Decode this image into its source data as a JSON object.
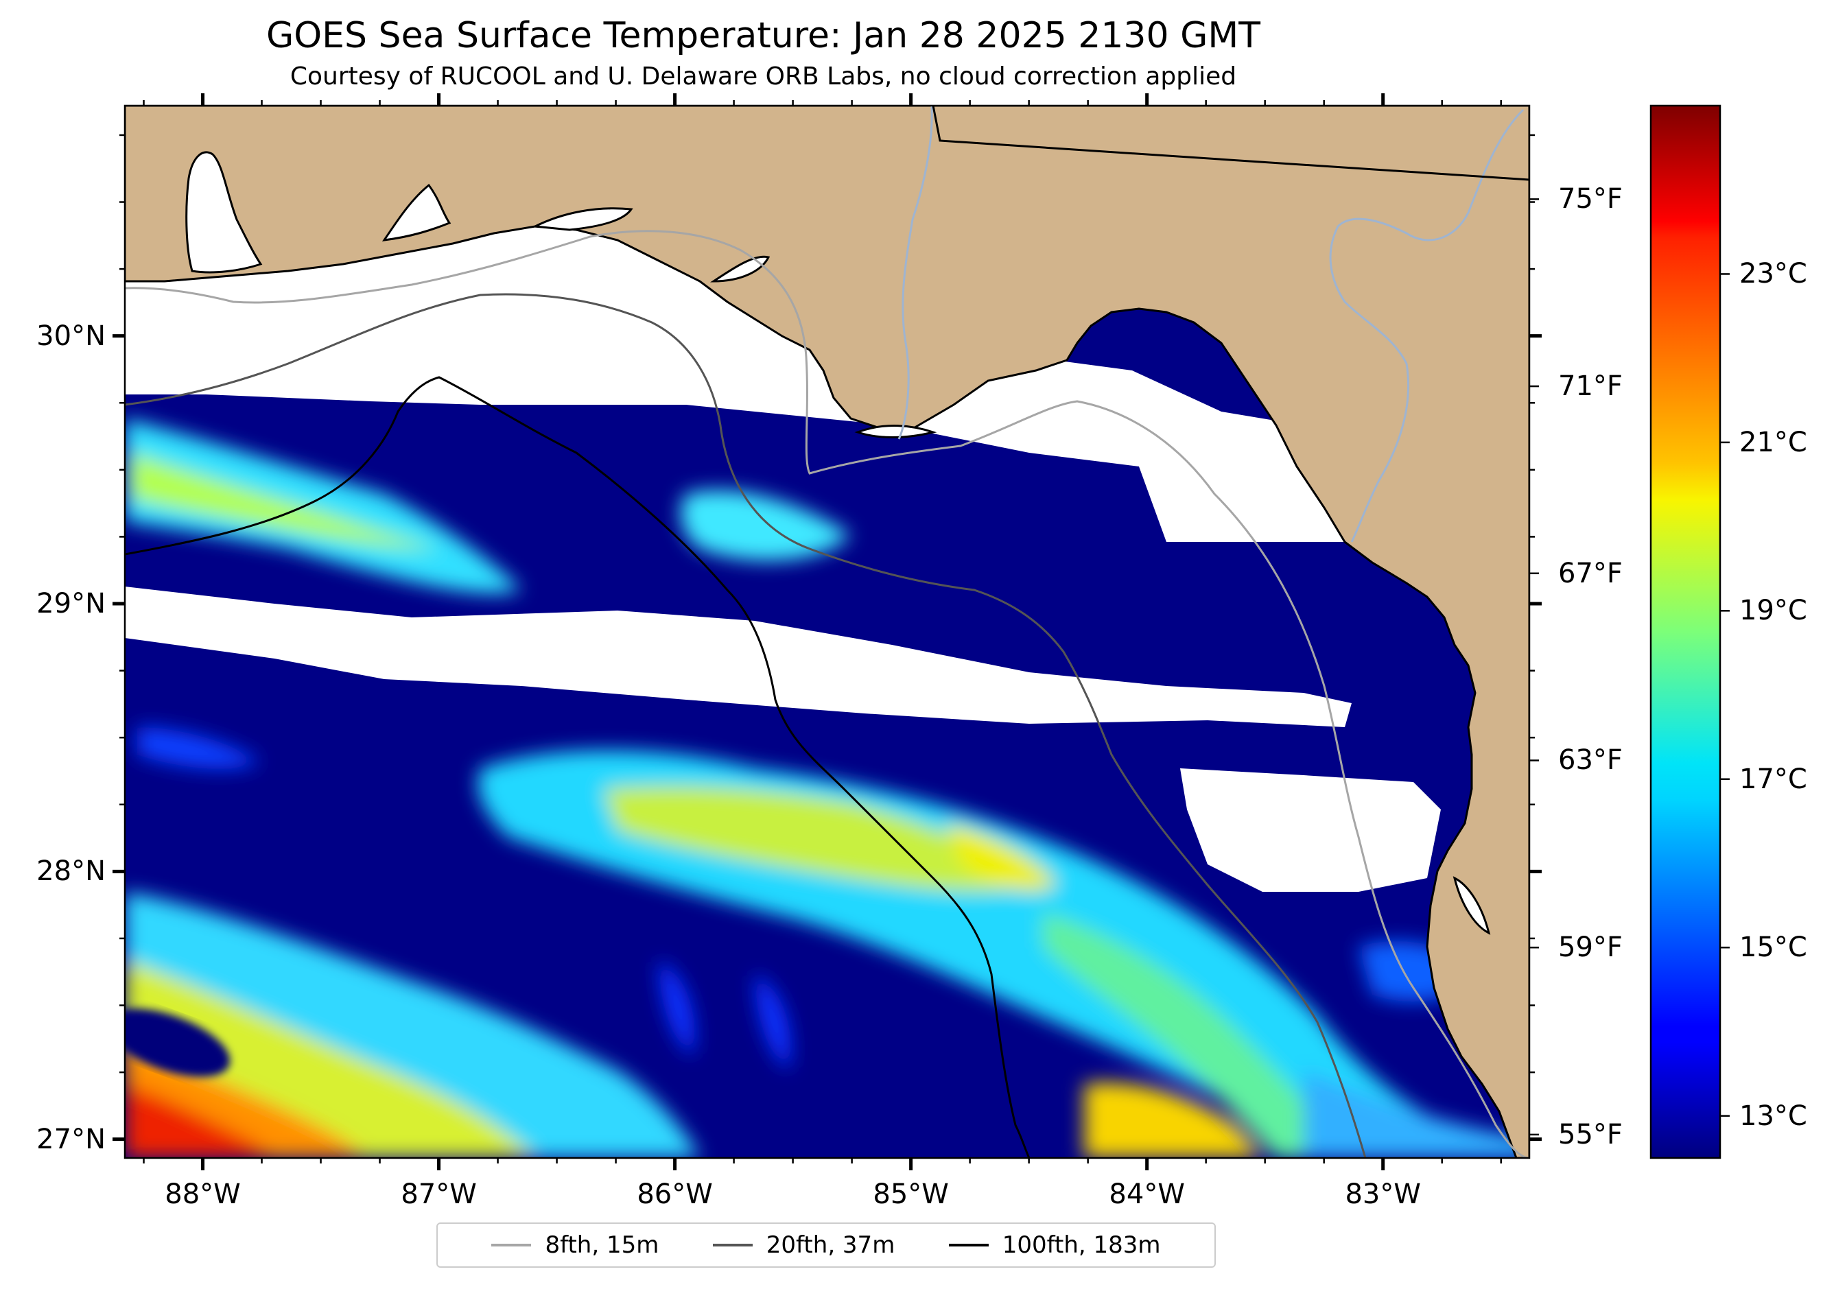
{
  "title": "GOES Sea Surface Temperature: Jan 28 2025 2130 GMT",
  "subtitle": "Courtesy of RUCOOL and U. Delaware ORB Labs, no cloud correction applied",
  "map": {
    "extent": {
      "lon_min": -88.33,
      "lon_max": -82.38,
      "lat_min": 26.93,
      "lat_max": 30.86
    },
    "colors": {
      "land": "#d2b48c",
      "cloud_mask": "#ffffff",
      "coast": "#000000",
      "rivers": "#9fb4d0"
    },
    "lat_ticks": [
      {
        "value": 30,
        "label": "30°N"
      },
      {
        "value": 29,
        "label": "29°N"
      },
      {
        "value": 28,
        "label": "28°N"
      },
      {
        "value": 27,
        "label": "27°N"
      }
    ],
    "lon_ticks": [
      {
        "value": -88,
        "label": "88°W"
      },
      {
        "value": -87,
        "label": "87°W"
      },
      {
        "value": -86,
        "label": "86°W"
      },
      {
        "value": -85,
        "label": "85°W"
      },
      {
        "value": -84,
        "label": "84°W"
      },
      {
        "value": -83,
        "label": "83°W"
      }
    ]
  },
  "colorbar": {
    "colormap": "jet",
    "range_c": [
      12.5,
      25.0
    ],
    "celsius_ticks": [
      {
        "value": 23,
        "label": "23°C"
      },
      {
        "value": 21,
        "label": "21°C"
      },
      {
        "value": 19,
        "label": "19°C"
      },
      {
        "value": 17,
        "label": "17°C"
      },
      {
        "value": 15,
        "label": "15°C"
      },
      {
        "value": 13,
        "label": "13°C"
      }
    ],
    "fahrenheit_ticks": [
      {
        "value": 75,
        "label": "75°F"
      },
      {
        "value": 71,
        "label": "71°F"
      },
      {
        "value": 67,
        "label": "67°F"
      },
      {
        "value": 63,
        "label": "63°F"
      },
      {
        "value": 59,
        "label": "59°F"
      },
      {
        "value": 55,
        "label": "55°F"
      }
    ]
  },
  "legend": [
    {
      "label": "8fth, 15m",
      "color": "#a6a6a6"
    },
    {
      "label": "20fth, 37m",
      "color": "#555555"
    },
    {
      "label": "100fth, 183m",
      "color": "#000000"
    }
  ]
}
